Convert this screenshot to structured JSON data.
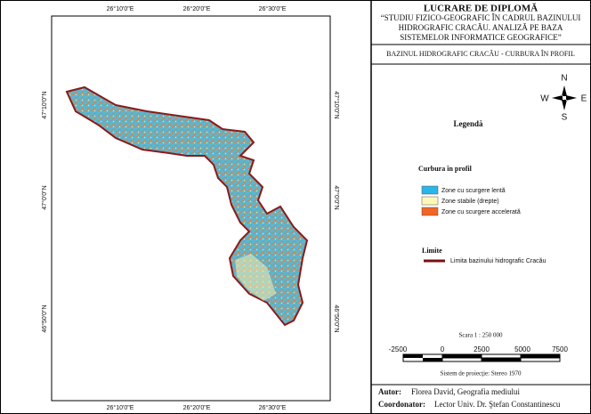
{
  "header": {
    "title": "LUCRARE  DE  DIPLOMĂ",
    "subtitle": [
      "“STUDIU FIZICO-GEOGRAFIC  ÎN CADRUL BAZINULUI",
      "HIDROGRAFIC CRACĂU.  ANALIZĂ PE BAZA",
      "SISTEMELOR INFORMATICE GEOGRAFICE”"
    ]
  },
  "map_title": "BAZINUL HIDROGRAFIC CRACĂU - CURBURA  ÎN  PROFIL",
  "graticule": {
    "longitudes": [
      "26°10'0\"E",
      "26°20'0\"E",
      "26°30'0\"E"
    ],
    "latitudes": [
      "47°10'0\"N",
      "47°0'0\"N",
      "46°50'0\"N"
    ]
  },
  "north_arrow": {
    "n": "N",
    "e": "E",
    "s": "S",
    "w": "W"
  },
  "legend": {
    "title": "Legendă",
    "curvature": {
      "title": "Curbura  în  profil",
      "items": [
        "Zone cu scurgere lentă",
        "Zone stabile (drepte)",
        "Zone cu scurgere accelerată"
      ]
    },
    "limits": {
      "title": "Limite",
      "item": "Limita  bazinului hidrografic Cracău"
    }
  },
  "scale": {
    "text": "Scara 1 : 250 000",
    "labels": [
      "-2500",
      "0",
      "2500",
      "5000",
      "7500"
    ]
  },
  "projection": "Sistem de proiecţie:  Stereo 1970",
  "credits": {
    "author_label": "Autor:",
    "author": "Florea David, Geografia mediului",
    "coordinator_label": "Coordonator:",
    "coordinator": "Lector Univ. Dr. Ştefan  Constantinescu"
  }
}
